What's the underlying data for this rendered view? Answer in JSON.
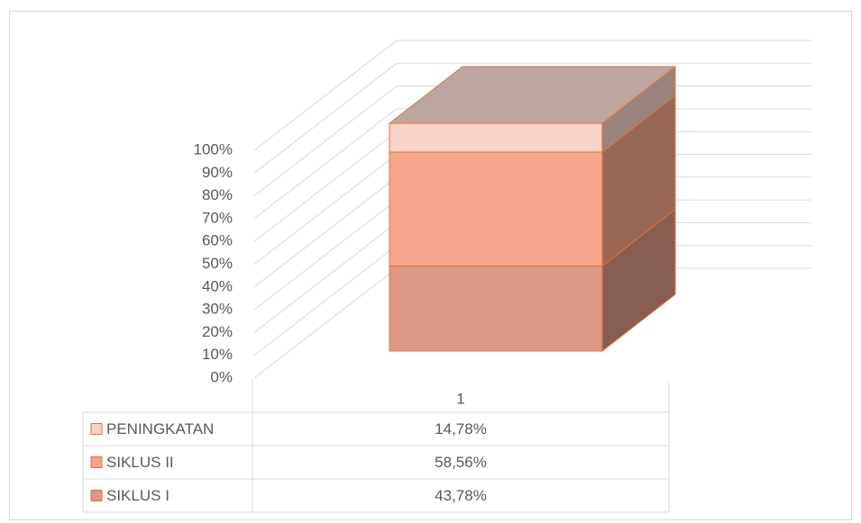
{
  "chart_data": {
    "type": "bar",
    "stacking": "percent",
    "categories": [
      "1"
    ],
    "series": [
      {
        "name": "PENINGKATAN",
        "color": "#f8d3c8",
        "values": [
          14.78
        ],
        "value_labels": [
          "14,78%"
        ]
      },
      {
        "name": "SIKLUS II",
        "color": "#f5a68a",
        "values": [
          58.56
        ],
        "value_labels": [
          "58,56%"
        ]
      },
      {
        "name": "SIKLUS I",
        "color": "#dc9884",
        "values": [
          43.78
        ],
        "value_labels": [
          "43,78%"
        ]
      }
    ],
    "ylim": [
      0,
      100
    ],
    "yticks": [
      {
        "value": 0,
        "label": "0%"
      },
      {
        "value": 10,
        "label": "10%"
      },
      {
        "value": 20,
        "label": "20%"
      },
      {
        "value": 30,
        "label": "30%"
      },
      {
        "value": 40,
        "label": "40%"
      },
      {
        "value": 50,
        "label": "50%"
      },
      {
        "value": 60,
        "label": "60%"
      },
      {
        "value": 70,
        "label": "70%"
      },
      {
        "value": 80,
        "label": "80%"
      },
      {
        "value": 90,
        "label": "90%"
      },
      {
        "value": 100,
        "label": "100%"
      }
    ],
    "grid": true
  }
}
